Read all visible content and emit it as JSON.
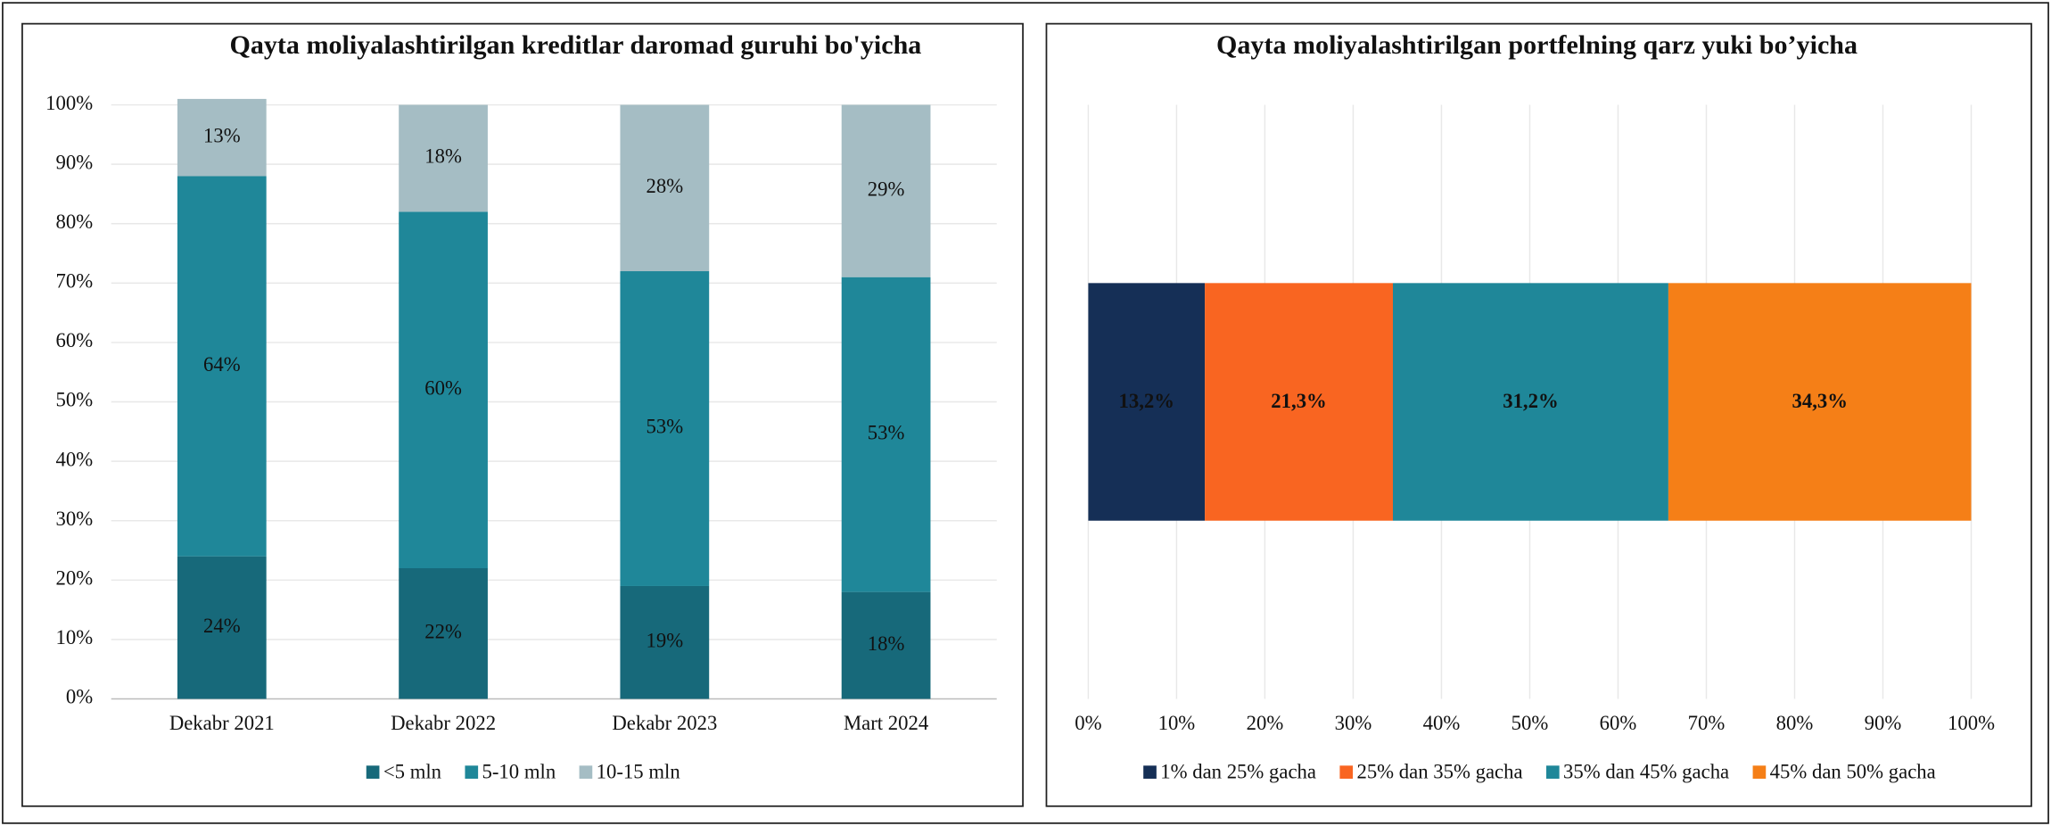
{
  "chart_data": [
    {
      "type": "stacked-bar",
      "title": "Qayta moliyalashtirilgan kreditlar daromad guruhi bo'yicha",
      "categories": [
        "Dekabr 2021",
        "Dekabr 2022",
        "Dekabr 2023",
        "Mart 2024"
      ],
      "series": [
        {
          "name": "<5 mln",
          "color": "#17697a",
          "values": [
            24,
            22,
            19,
            18
          ],
          "value_labels": [
            "24%",
            "22%",
            "19%",
            "18%"
          ]
        },
        {
          "name": "5-10 mln",
          "color": "#1f8799",
          "values": [
            64,
            60,
            53,
            53
          ],
          "value_labels": [
            "64%",
            "60%",
            "53%",
            "53%"
          ]
        },
        {
          "name": "10-15 mln",
          "color": "#a5bdc4",
          "values": [
            13,
            18,
            28,
            29
          ],
          "value_labels": [
            "13%",
            "18%",
            "28%",
            "29%"
          ]
        }
      ],
      "ylim": [
        0,
        100
      ],
      "yticks": [
        {
          "value": 0,
          "label": "0%"
        },
        {
          "value": 10,
          "label": "10%"
        },
        {
          "value": 20,
          "label": "20%"
        },
        {
          "value": 30,
          "label": "30%"
        },
        {
          "value": 40,
          "label": "40%"
        },
        {
          "value": 50,
          "label": "50%"
        },
        {
          "value": 60,
          "label": "60%"
        },
        {
          "value": 70,
          "label": "70%"
        },
        {
          "value": 80,
          "label": "80%"
        },
        {
          "value": 90,
          "label": "90%"
        },
        {
          "value": 100,
          "label": "100%"
        }
      ],
      "grid": true,
      "legend": "bottom"
    },
    {
      "type": "stacked-barh",
      "title": "Qayta moliyalashtirilgan portfelning qarz yuki bo’yicha",
      "categories": [
        null
      ],
      "series": [
        {
          "name": "1% dan 25% gacha",
          "color": "#152f56",
          "values": [
            13.2
          ],
          "value_labels": [
            "13,2%"
          ]
        },
        {
          "name": "25% dan 35% gacha",
          "color": "#f96521",
          "values": [
            21.3
          ],
          "value_labels": [
            "21,3%"
          ]
        },
        {
          "name": "35% dan 45% gacha",
          "color": "#1f8799",
          "values": [
            31.2
          ],
          "value_labels": [
            "31,2%"
          ]
        },
        {
          "name": "45% dan 50% gacha",
          "color": "#f57f17",
          "values": [
            34.3
          ],
          "value_labels": [
            "34,3%"
          ]
        }
      ],
      "xlim": [
        0,
        100
      ],
      "xticks": [
        {
          "value": 0,
          "label": "0%"
        },
        {
          "value": 10,
          "label": "10%"
        },
        {
          "value": 20,
          "label": "20%"
        },
        {
          "value": 30,
          "label": "30%"
        },
        {
          "value": 40,
          "label": "40%"
        },
        {
          "value": 50,
          "label": "50%"
        },
        {
          "value": 60,
          "label": "60%"
        },
        {
          "value": 70,
          "label": "70%"
        },
        {
          "value": 80,
          "label": "80%"
        },
        {
          "value": 90,
          "label": "90%"
        },
        {
          "value": 100,
          "label": "100%"
        }
      ],
      "grid": true,
      "legend": "bottom"
    }
  ]
}
